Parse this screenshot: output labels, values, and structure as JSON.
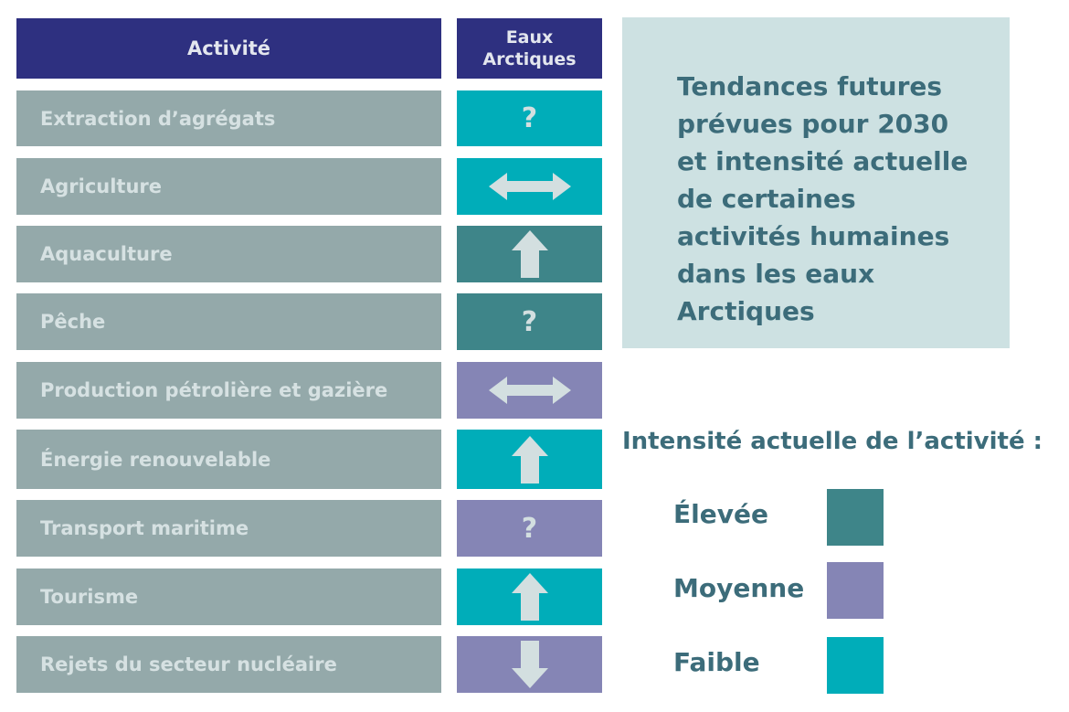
{
  "header": {
    "activity": "Activité",
    "region": "Eaux Arctiques"
  },
  "colors": {
    "header": "#2e3080",
    "row": "#94a9aa",
    "high": "#3e8589",
    "medium": "#8585b5",
    "low": "#00adb9"
  },
  "rows": [
    {
      "label": "Extraction d’agrégats",
      "intensity": "low",
      "trend": "unknown",
      "symbol": "?"
    },
    {
      "label": "Agriculture",
      "intensity": "low",
      "trend": "stable"
    },
    {
      "label": "Aquaculture",
      "intensity": "high",
      "trend": "increase"
    },
    {
      "label": "Pêche",
      "intensity": "high",
      "trend": "unknown",
      "symbol": "?"
    },
    {
      "label": "Production pétrolière et gazière",
      "intensity": "medium",
      "trend": "stable"
    },
    {
      "label": "Énergie renouvelable",
      "intensity": "low",
      "trend": "increase"
    },
    {
      "label": "Transport maritime",
      "intensity": "medium",
      "trend": "unknown",
      "symbol": "?"
    },
    {
      "label": "Tourisme",
      "intensity": "low",
      "trend": "increase"
    },
    {
      "label": "Rejets du secteur nucléaire",
      "intensity": "medium",
      "trend": "decrease"
    }
  ],
  "title": "Tendances futures prévues pour 2030 et intensité actuelle de certaines activités humaines dans les eaux Arctiques",
  "legend": {
    "title": "Intensité actuelle de l’activité :",
    "items": [
      {
        "label": "Élevée",
        "intensity": "high"
      },
      {
        "label": "Moyenne",
        "intensity": "medium"
      },
      {
        "label": "Faible",
        "intensity": "low"
      }
    ]
  }
}
